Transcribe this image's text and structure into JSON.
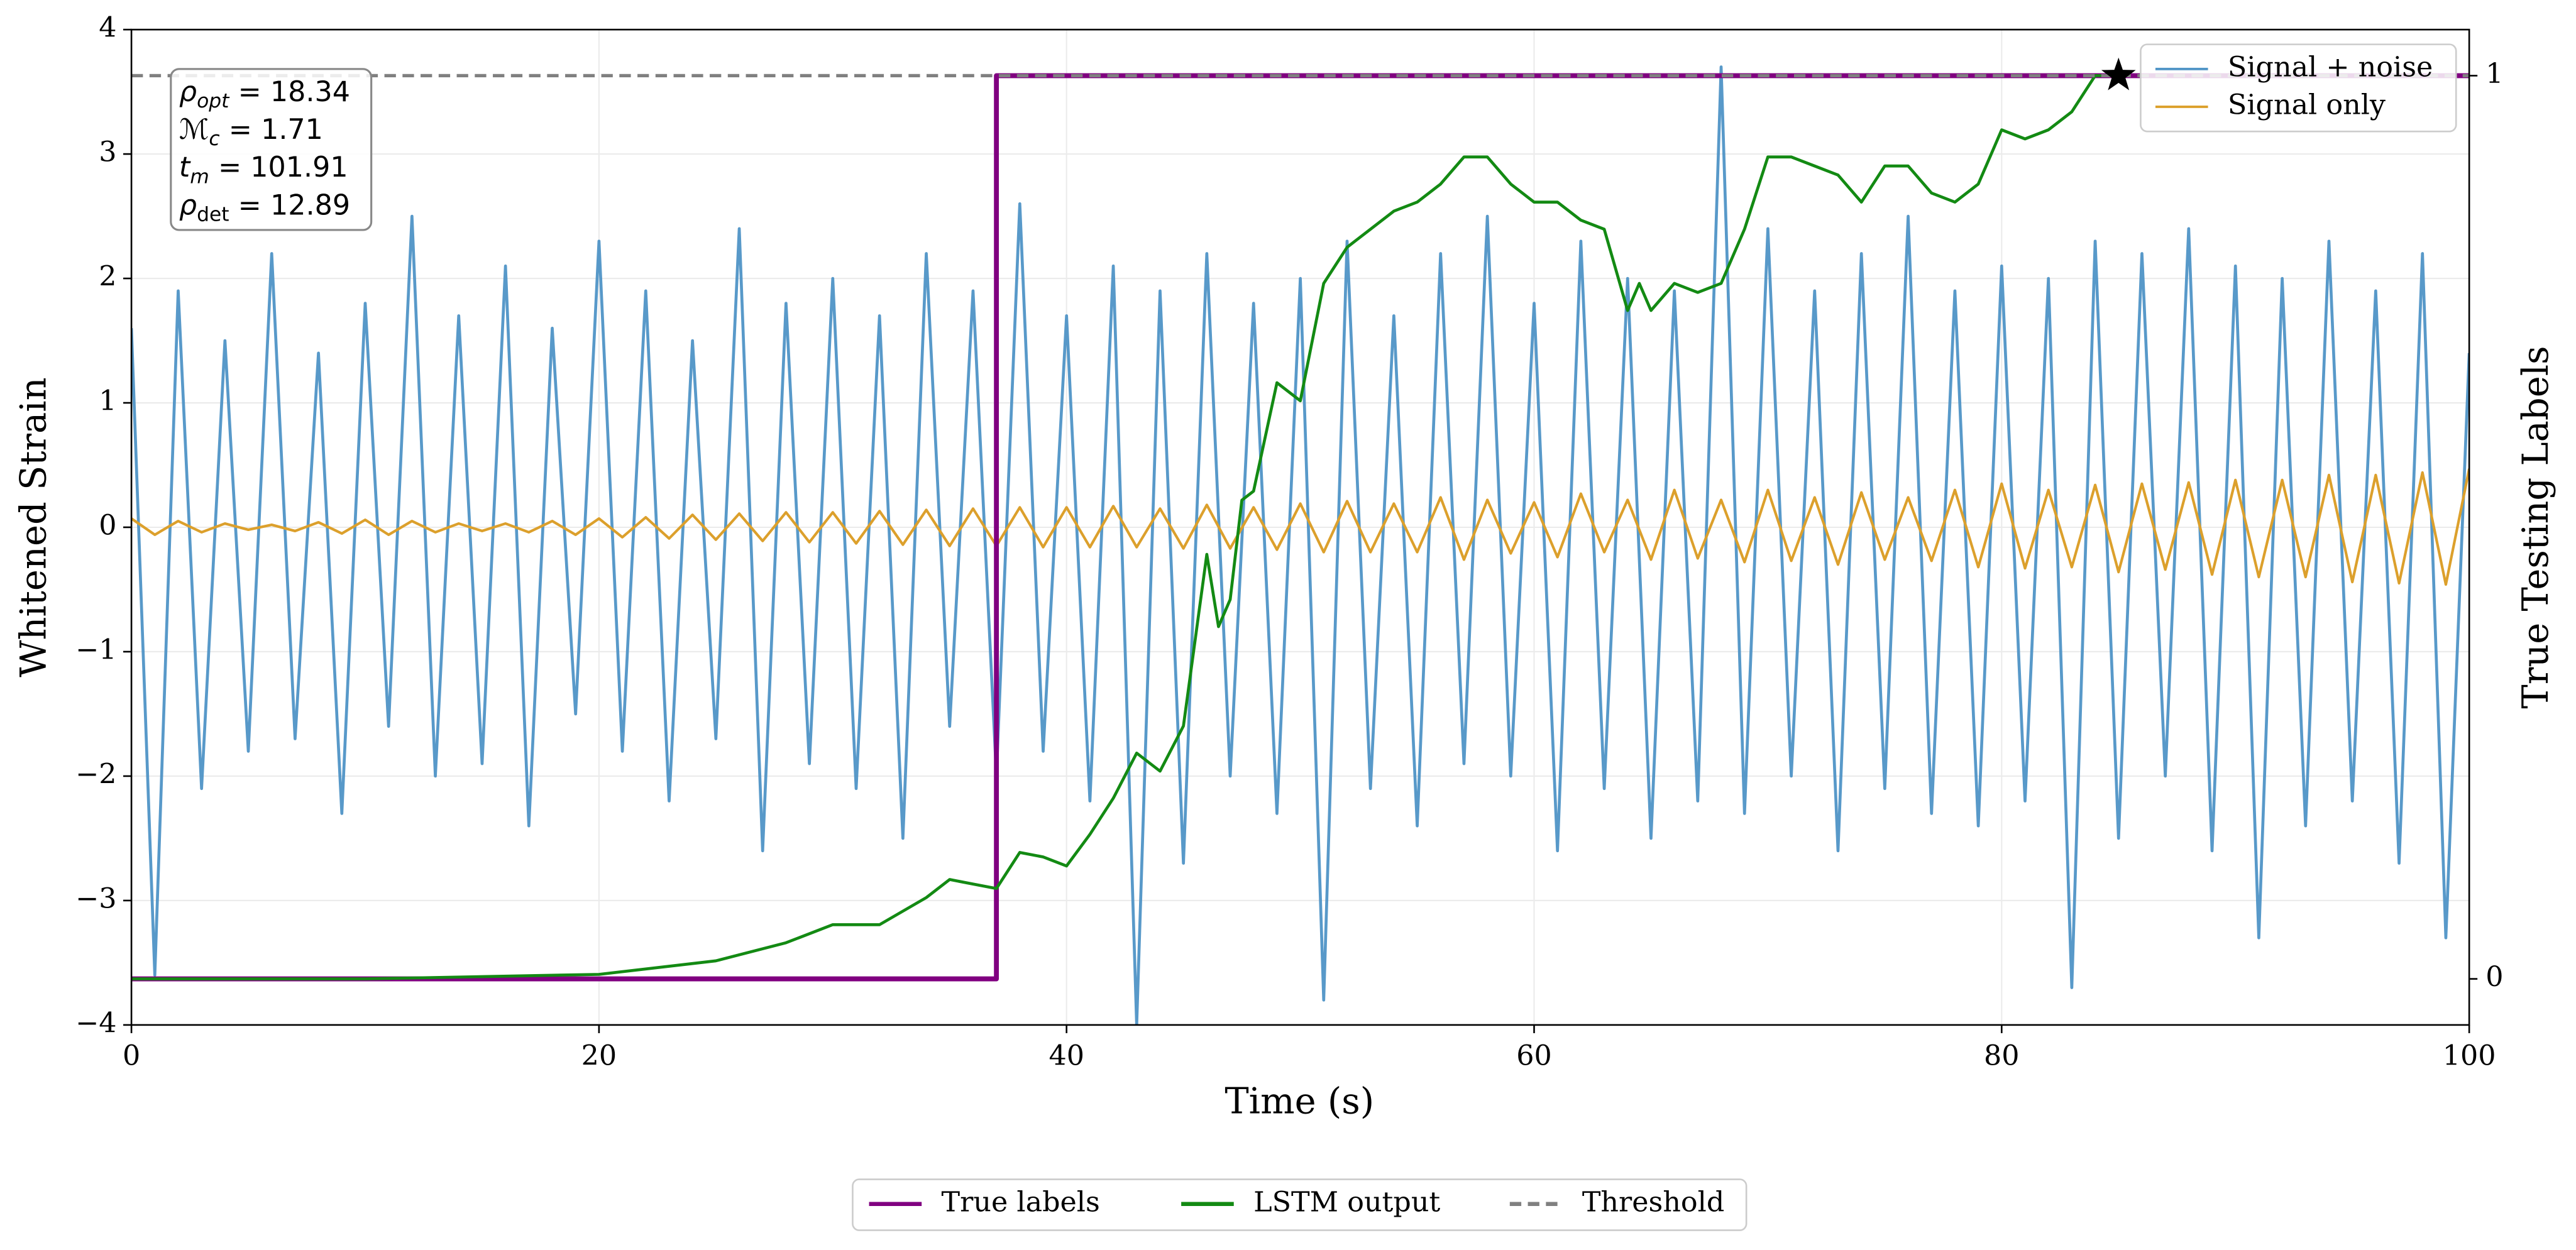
{
  "chart_data": {
    "type": "line",
    "xlabel": "Time (s)",
    "ylabel": "Whitened Strain",
    "y2label": "True Testing Labels",
    "xlim": [
      0,
      100
    ],
    "xticks": [
      0,
      20,
      40,
      60,
      80,
      100
    ],
    "ylim": [
      -4,
      4
    ],
    "yticks": [
      {
        "value": -4,
        "label": "−4"
      },
      {
        "value": -3,
        "label": "−3"
      },
      {
        "value": -2,
        "label": "−2"
      },
      {
        "value": -1,
        "label": "−1"
      },
      0,
      1,
      2,
      3,
      4
    ],
    "y2lim": [
      -0.051,
      1.051
    ],
    "y2ticks": [
      0,
      1
    ],
    "grid": true,
    "legend": {
      "y": "upper right",
      "y2": "lower center"
    },
    "x": [
      0,
      1,
      2,
      3,
      4,
      5,
      6,
      7,
      8,
      9,
      10,
      11,
      12,
      13,
      14,
      15,
      16,
      17,
      18,
      19,
      20,
      21,
      22,
      23,
      24,
      25,
      26,
      27,
      28,
      29,
      30,
      31,
      32,
      33,
      34,
      35,
      36,
      37,
      38,
      39,
      40,
      41,
      42,
      43,
      44,
      45,
      46,
      47,
      48,
      49,
      50,
      51,
      52,
      53,
      54,
      55,
      56,
      57,
      58,
      59,
      60,
      61,
      62,
      63,
      64,
      65,
      66,
      67,
      68,
      69,
      70,
      71,
      72,
      73,
      74,
      75,
      76,
      77,
      78,
      79,
      80,
      81,
      82,
      83,
      84,
      85,
      86,
      87,
      88,
      89,
      90,
      91,
      92,
      93,
      94,
      95,
      96,
      97,
      98,
      99,
      100
    ],
    "series": [
      {
        "name": "Signal + noise",
        "color": "#4f94c6",
        "axis": "y",
        "values": [
          1.6,
          -3.6,
          1.9,
          -2.1,
          1.5,
          -1.8,
          2.2,
          -1.7,
          1.4,
          -2.3,
          1.8,
          -1.6,
          2.5,
          -2.0,
          1.7,
          -1.9,
          2.1,
          -2.4,
          1.6,
          -1.5,
          2.3,
          -1.8,
          1.9,
          -2.2,
          1.5,
          -1.7,
          2.4,
          -2.6,
          1.8,
          -1.9,
          2.0,
          -2.1,
          1.7,
          -2.5,
          2.2,
          -1.6,
          1.9,
          -2.0,
          2.6,
          -1.8,
          1.7,
          -2.2,
          2.1,
          -4.0,
          1.9,
          -2.7,
          2.2,
          -2.0,
          1.8,
          -2.3,
          2.0,
          -3.8,
          2.3,
          -2.1,
          1.7,
          -2.4,
          2.2,
          -1.9,
          2.5,
          -2.0,
          1.8,
          -2.6,
          2.3,
          -2.1,
          2.0,
          -2.5,
          1.9,
          -2.2,
          3.7,
          -2.3,
          2.4,
          -2.0,
          1.9,
          -2.6,
          2.2,
          -2.1,
          2.5,
          -2.3,
          1.9,
          -2.4,
          2.1,
          -2.2,
          2.0,
          -3.7,
          2.3,
          -2.5,
          2.2,
          -2.0,
          2.4,
          -2.6,
          2.1,
          -3.3,
          2.0,
          -2.4,
          2.3,
          -2.2,
          1.9,
          -2.7,
          2.2,
          -3.3,
          1.4
        ]
      },
      {
        "name": "Signal only",
        "color": "#dca02c",
        "axis": "y",
        "values": [
          0.07,
          -0.06,
          0.05,
          -0.04,
          0.03,
          -0.02,
          0.02,
          -0.03,
          0.04,
          -0.05,
          0.06,
          -0.06,
          0.05,
          -0.04,
          0.03,
          -0.03,
          0.03,
          -0.04,
          0.05,
          -0.06,
          0.07,
          -0.08,
          0.08,
          -0.09,
          0.1,
          -0.1,
          0.11,
          -0.11,
          0.12,
          -0.12,
          0.12,
          -0.13,
          0.13,
          -0.14,
          0.14,
          -0.15,
          0.15,
          -0.15,
          0.16,
          -0.16,
          0.16,
          -0.16,
          0.17,
          -0.16,
          0.15,
          -0.17,
          0.18,
          -0.17,
          0.16,
          -0.18,
          0.19,
          -0.2,
          0.21,
          -0.2,
          0.19,
          -0.2,
          0.24,
          -0.26,
          0.22,
          -0.21,
          0.2,
          -0.24,
          0.27,
          -0.2,
          0.22,
          -0.26,
          0.3,
          -0.25,
          0.22,
          -0.28,
          0.3,
          -0.27,
          0.24,
          -0.3,
          0.28,
          -0.26,
          0.24,
          -0.27,
          0.3,
          -0.32,
          0.35,
          -0.33,
          0.3,
          -0.32,
          0.34,
          -0.36,
          0.35,
          -0.34,
          0.36,
          -0.38,
          0.38,
          -0.4,
          0.38,
          -0.4,
          0.42,
          -0.44,
          0.42,
          -0.45,
          0.44,
          -0.46,
          0.47
        ]
      },
      {
        "name": "True labels",
        "color": "#800080",
        "axis": "y2",
        "x": [
          0,
          37,
          37,
          100
        ],
        "values": [
          0,
          0,
          1,
          1
        ]
      },
      {
        "name": "LSTM output",
        "color": "#138a13",
        "axis": "y2",
        "x": [
          0,
          10,
          20,
          25,
          28,
          30,
          32,
          34,
          35,
          36,
          37,
          38,
          39,
          40,
          41,
          42,
          43,
          44,
          45,
          46,
          46.5,
          47,
          47.5,
          48,
          49,
          50,
          51,
          52,
          53,
          54,
          55,
          56,
          57,
          58,
          59,
          60,
          61,
          62,
          63,
          64,
          64.5,
          65,
          66,
          67,
          68,
          69,
          70,
          71,
          72,
          73,
          74,
          75,
          76,
          77,
          78,
          79,
          80,
          81,
          82,
          83,
          84,
          85
        ],
        "values": [
          0,
          0,
          0.005,
          0.02,
          0.04,
          0.06,
          0.06,
          0.09,
          0.11,
          0.105,
          0.1,
          0.14,
          0.135,
          0.125,
          0.16,
          0.2,
          0.25,
          0.23,
          0.28,
          0.47,
          0.39,
          0.42,
          0.53,
          0.54,
          0.66,
          0.64,
          0.77,
          0.81,
          0.83,
          0.85,
          0.86,
          0.88,
          0.91,
          0.91,
          0.88,
          0.86,
          0.86,
          0.84,
          0.83,
          0.74,
          0.77,
          0.74,
          0.77,
          0.76,
          0.77,
          0.83,
          0.91,
          0.91,
          0.9,
          0.89,
          0.86,
          0.9,
          0.9,
          0.87,
          0.86,
          0.88,
          0.94,
          0.93,
          0.94,
          0.96,
          1.0,
          1.0
        ]
      },
      {
        "name": "Threshold",
        "color": "#808080",
        "axis": "y2",
        "dashed": true,
        "x": [
          0,
          100
        ],
        "values": [
          1,
          1
        ]
      }
    ],
    "marker": {
      "x": 85,
      "y": 1,
      "color": "#000000"
    },
    "annotations": [
      {
        "symbol": "ρ",
        "subscript": "opt",
        "value": 18.34
      },
      {
        "symbol": "ℳ",
        "subscript": "c",
        "value": 1.71
      },
      {
        "symbol": "t",
        "subscript": "m",
        "value": 101.91
      },
      {
        "symbol": "ρ",
        "subscript": "det",
        "value": 12.89
      }
    ]
  }
}
